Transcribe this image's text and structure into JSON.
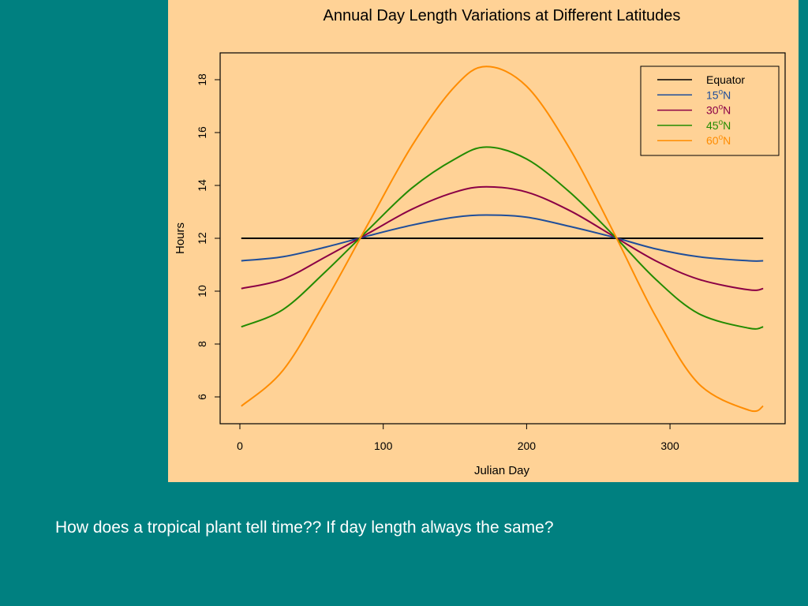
{
  "chart_data": {
    "type": "line",
    "title": "Annual Day Length Variations at Different Latitudes",
    "xlabel": "Julian Day",
    "ylabel": "Hours",
    "xlim": [
      0,
      365
    ],
    "ylim": [
      5,
      19
    ],
    "x_ticks": [
      0,
      100,
      200,
      300
    ],
    "y_ticks": [
      6,
      8,
      10,
      12,
      14,
      16,
      18
    ],
    "grid": false,
    "legend_position": "top-right",
    "x": [
      1,
      30,
      60,
      90,
      120,
      150,
      172,
      200,
      230,
      260,
      290,
      320,
      355,
      365
    ],
    "series": [
      {
        "name": "Equator",
        "sup": "",
        "suffix": "",
        "color": "#000000",
        "values": [
          12.0,
          12.0,
          12.0,
          12.0,
          12.0,
          12.0,
          12.0,
          12.0,
          12.0,
          12.0,
          12.0,
          12.0,
          12.0,
          12.0
        ]
      },
      {
        "name": "15",
        "sup": "o",
        "suffix": "N",
        "color": "#1f4e9a",
        "values": [
          11.15,
          11.3,
          11.67,
          12.1,
          12.5,
          12.8,
          12.88,
          12.8,
          12.45,
          12.05,
          11.6,
          11.3,
          11.15,
          11.15
        ]
      },
      {
        "name": "30",
        "sup": "o",
        "suffix": "N",
        "color": "#8b0045",
        "values": [
          10.1,
          10.45,
          11.3,
          12.2,
          13.1,
          13.75,
          13.95,
          13.75,
          13.05,
          12.1,
          11.15,
          10.45,
          10.05,
          10.1
        ]
      },
      {
        "name": "45",
        "sup": "o",
        "suffix": "N",
        "color": "#228b00",
        "values": [
          8.65,
          9.3,
          10.75,
          12.35,
          13.9,
          15.0,
          15.45,
          15.0,
          13.75,
          12.15,
          10.45,
          9.15,
          8.6,
          8.65
        ]
      },
      {
        "name": "60",
        "sup": "o",
        "suffix": "N",
        "color": "#ff8c00",
        "values": [
          5.65,
          7.0,
          9.65,
          12.6,
          15.5,
          17.75,
          18.5,
          17.75,
          15.4,
          12.3,
          9.05,
          6.5,
          5.5,
          5.65
        ]
      }
    ]
  },
  "caption": "How does a tropical plant tell time?? If day length always the same?"
}
